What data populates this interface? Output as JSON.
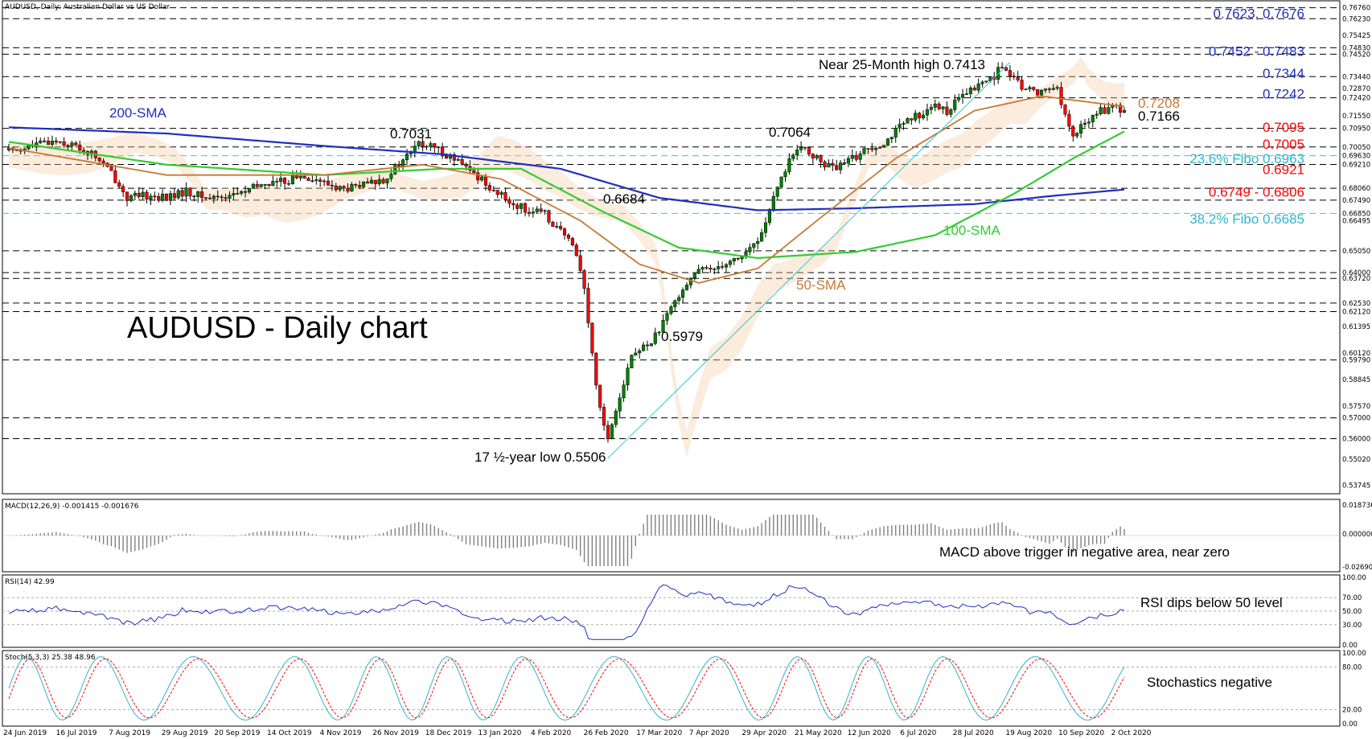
{
  "colors": {
    "up": "#008000",
    "down": "#ff0000",
    "sma200": "#1f2fbf",
    "sma100": "#33cc33",
    "sma50": "#c87830",
    "blue_txt": "#1f2fbf",
    "red_txt": "#ff0000",
    "cyan_txt": "#33b5c9",
    "fib_line": "#33cccc",
    "orange_txt": "#c87830"
  },
  "header": {
    "main": "AUDUSD, Daily:  Australian Dollar vs US Dollar",
    "macd": "MACD(12,26,9) -0.001415 -0.001676",
    "rsi": "RSI(14) 42.99",
    "stoch": "Stoch(5,3,3) 25.38 48.96"
  },
  "annotations": {
    "big_title": "AUDUSD - Daily chart",
    "sma200": "200-SMA",
    "sma100": "100-SMA",
    "sma50": "50-SMA",
    "high_note": "Near 25-Month high 0.7413",
    "low_note": "17 ½-year low 0.5506",
    "p7031": "0.7031",
    "p7064": "0.7064",
    "p6684": "0.6684",
    "p5979": "0.5979",
    "p7208": "0.7208",
    "p7166": "0.7166",
    "macd_note": "MACD above trigger in negative area, near zero",
    "rsi_note": "RSI dips below 50 level",
    "stoch_note": "Stochastics negative"
  },
  "right_labels": [
    {
      "text": "0.7623, 0.7676",
      "color": "blue",
      "price": 0.765
    },
    {
      "text": "0.7452 - 0.7483",
      "color": "blue",
      "price": 0.7468
    },
    {
      "text": "0.7344",
      "color": "blue",
      "price": 0.736
    },
    {
      "text": "0.7242",
      "color": "blue",
      "price": 0.7262
    },
    {
      "text": "0.7095",
      "color": "red",
      "price": 0.7102
    },
    {
      "text": "0.7005",
      "color": "red",
      "price": 0.702
    },
    {
      "text": "23.6% Fibo 0.6963",
      "color": "cyan",
      "price": 0.695
    },
    {
      "text": "0.6921",
      "color": "red",
      "price": 0.6898
    },
    {
      "text": "0.6749 - 0.6806",
      "color": "red",
      "price": 0.679
    },
    {
      "text": "38.2% Fibo 0.6685",
      "color": "cyan",
      "price": 0.666
    }
  ],
  "price_axis": [
    "0.76760",
    "0.76230",
    "0.75425",
    "0.74830",
    "0.74520",
    "0.73440",
    "0.72870",
    "0.72420",
    "0.71550",
    "0.70950",
    "0.70050",
    "0.69630",
    "0.69210",
    "0.68060",
    "0.67490",
    "0.66850",
    "0.66495",
    "0.65050",
    "0.64000",
    "0.63720",
    "0.62530",
    "0.62120",
    "0.61395",
    "0.60120",
    "0.59790",
    "0.58845",
    "0.57570",
    "0.57000",
    "0.56000",
    "0.55020",
    "0.53745"
  ],
  "macd_axis": [
    "0.018736",
    "0.000000",
    "-0.026907"
  ],
  "rsi_axis": [
    "100.00",
    "70.00",
    "50.00",
    "30.00",
    "0.00"
  ],
  "stoch_axis": [
    "100.00",
    "80.00",
    "20.00",
    "0.00"
  ],
  "date_axis": [
    "24 Jun 2019",
    "16 Jul 2019",
    "7 Aug 2019",
    "29 Aug 2019",
    "20 Sep 2019",
    "14 Oct 2019",
    "4 Nov 2019",
    "26 Nov 2019",
    "18 Dec 2019",
    "13 Jan 2020",
    "4 Feb 2020",
    "26 Feb 2020",
    "17 Mar 2020",
    "7 Apr 2020",
    "29 Apr 2020",
    "21 May 2020",
    "12 Jun 2020",
    "6 Jul 2020",
    "28 Jul 2020",
    "19 Aug 2020",
    "10 Sep 2020",
    "2 Oct 2020"
  ],
  "chart_data": {
    "type": "candlestick",
    "symbol": "AUDUSD",
    "timeframe": "Daily",
    "ylim": [
      0.535,
      0.769
    ],
    "x_range": [
      "24 Jun 2019",
      "Oct 2020"
    ],
    "horizontal_levels": [
      0.7676,
      0.7623,
      0.7483,
      0.7452,
      0.7344,
      0.7242,
      0.7095,
      0.7005,
      0.6921,
      0.6806,
      0.6749,
      0.6505,
      0.64,
      0.6372,
      0.6253,
      0.6212,
      0.5979,
      0.57,
      0.56
    ],
    "fib_levels": [
      {
        "name": "23.6% Fibo",
        "value": 0.6963
      },
      {
        "name": "38.2% Fibo",
        "value": 0.6685
      }
    ],
    "close_path": [
      [
        0,
        0.699
      ],
      [
        6,
        0.701
      ],
      [
        12,
        0.704
      ],
      [
        18,
        0.7
      ],
      [
        22,
        0.696
      ],
      [
        26,
        0.688
      ],
      [
        30,
        0.676
      ],
      [
        35,
        0.677
      ],
      [
        40,
        0.676
      ],
      [
        45,
        0.679
      ],
      [
        50,
        0.676
      ],
      [
        55,
        0.677
      ],
      [
        60,
        0.679
      ],
      [
        65,
        0.683
      ],
      [
        70,
        0.684
      ],
      [
        75,
        0.687
      ],
      [
        80,
        0.683
      ],
      [
        85,
        0.68
      ],
      [
        90,
        0.682
      ],
      [
        95,
        0.685
      ],
      [
        100,
        0.694
      ],
      [
        104,
        0.702
      ],
      [
        108,
        0.7
      ],
      [
        112,
        0.696
      ],
      [
        116,
        0.69
      ],
      [
        120,
        0.685
      ],
      [
        124,
        0.678
      ],
      [
        128,
        0.673
      ],
      [
        132,
        0.67
      ],
      [
        136,
        0.668
      ],
      [
        140,
        0.66
      ],
      [
        144,
        0.65
      ],
      [
        146,
        0.632
      ],
      [
        148,
        0.6
      ],
      [
        150,
        0.575
      ],
      [
        152,
        0.56
      ],
      [
        154,
        0.575
      ],
      [
        158,
        0.6
      ],
      [
        162,
        0.605
      ],
      [
        166,
        0.615
      ],
      [
        170,
        0.63
      ],
      [
        174,
        0.64
      ],
      [
        178,
        0.642
      ],
      [
        182,
        0.645
      ],
      [
        186,
        0.648
      ],
      [
        190,
        0.655
      ],
      [
        194,
        0.675
      ],
      [
        198,
        0.695
      ],
      [
        202,
        0.7
      ],
      [
        206,
        0.693
      ],
      [
        210,
        0.69
      ],
      [
        214,
        0.695
      ],
      [
        218,
        0.7
      ],
      [
        222,
        0.703
      ],
      [
        226,
        0.71
      ],
      [
        230,
        0.715
      ],
      [
        234,
        0.72
      ],
      [
        238,
        0.718
      ],
      [
        242,
        0.725
      ],
      [
        246,
        0.73
      ],
      [
        250,
        0.735
      ],
      [
        252,
        0.74
      ],
      [
        254,
        0.734
      ],
      [
        258,
        0.728
      ],
      [
        262,
        0.727
      ],
      [
        266,
        0.73
      ],
      [
        268,
        0.715
      ],
      [
        270,
        0.705
      ],
      [
        272,
        0.71
      ],
      [
        276,
        0.717
      ],
      [
        280,
        0.72
      ],
      [
        283,
        0.7166
      ]
    ],
    "sma200_path": [
      [
        0,
        0.71
      ],
      [
        40,
        0.707
      ],
      [
        80,
        0.701
      ],
      [
        110,
        0.697
      ],
      [
        140,
        0.69
      ],
      [
        165,
        0.676
      ],
      [
        190,
        0.67
      ],
      [
        215,
        0.671
      ],
      [
        245,
        0.673
      ],
      [
        265,
        0.677
      ],
      [
        283,
        0.68
      ]
    ],
    "sma100_path": [
      [
        0,
        0.703
      ],
      [
        40,
        0.692
      ],
      [
        80,
        0.687
      ],
      [
        110,
        0.69
      ],
      [
        130,
        0.69
      ],
      [
        150,
        0.67
      ],
      [
        170,
        0.652
      ],
      [
        190,
        0.647
      ],
      [
        215,
        0.65
      ],
      [
        235,
        0.658
      ],
      [
        255,
        0.678
      ],
      [
        270,
        0.695
      ],
      [
        283,
        0.708
      ]
    ],
    "sma50_path": [
      [
        0,
        0.7
      ],
      [
        40,
        0.687
      ],
      [
        80,
        0.687
      ],
      [
        105,
        0.692
      ],
      [
        125,
        0.685
      ],
      [
        145,
        0.665
      ],
      [
        160,
        0.644
      ],
      [
        175,
        0.635
      ],
      [
        190,
        0.642
      ],
      [
        205,
        0.665
      ],
      [
        225,
        0.695
      ],
      [
        245,
        0.718
      ],
      [
        262,
        0.725
      ],
      [
        283,
        0.72
      ]
    ],
    "macd": {
      "axis_ticks": [
        0.018736,
        0.0,
        -0.026907
      ],
      "last": -0.001415,
      "signal": -0.001676
    },
    "rsi": {
      "period": 14,
      "last": 42.99,
      "levels": [
        70,
        50,
        30
      ]
    },
    "stoch": {
      "params": "5,3,3",
      "k": 25.38,
      "d": 48.96,
      "levels": [
        80,
        20
      ]
    }
  }
}
